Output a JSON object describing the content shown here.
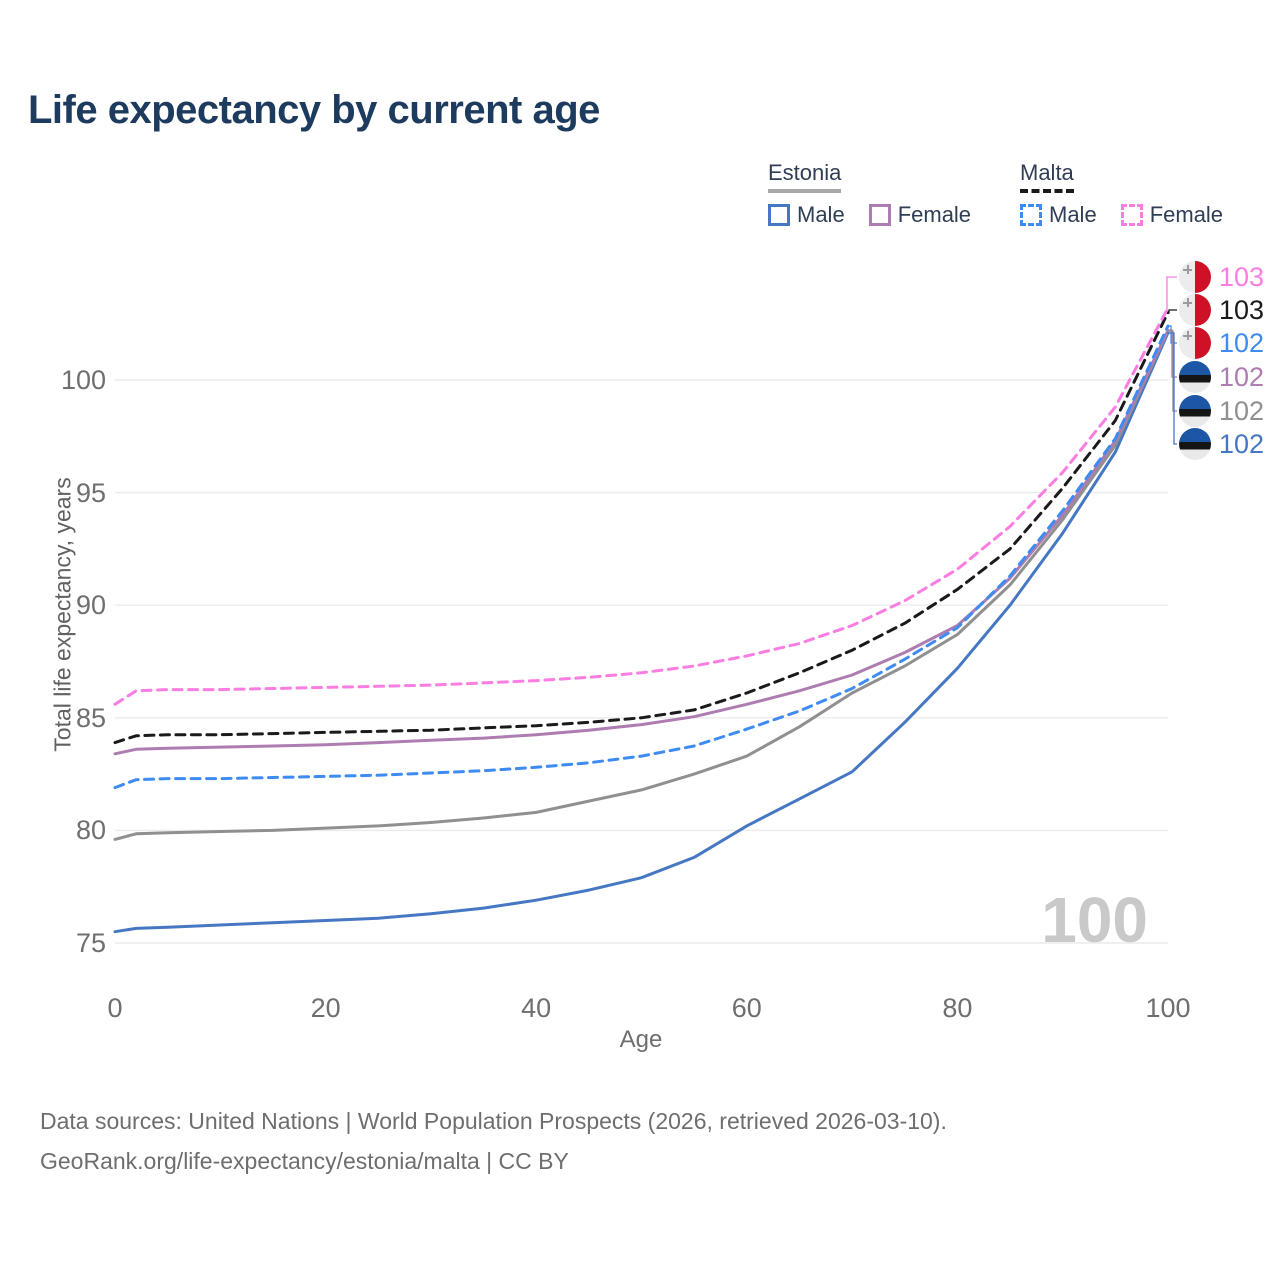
{
  "title": "Life expectancy by current age",
  "legend": {
    "groups": [
      {
        "id": "estonia",
        "label": "Estonia",
        "line_style": "solid",
        "underline_color": "#a8a8a8",
        "items": [
          {
            "label": "Male",
            "color": "#4577c3",
            "dashed": false
          },
          {
            "label": "Female",
            "color": "#ad7cb0",
            "dashed": false
          }
        ]
      },
      {
        "id": "malta",
        "label": "Malta",
        "line_style": "dashed",
        "underline_color": "#1a1a1a",
        "items": [
          {
            "label": "Male",
            "color": "#3e8bf2",
            "dashed": true
          },
          {
            "label": "Female",
            "color": "#fa7de2",
            "dashed": true
          }
        ]
      }
    ]
  },
  "chart_data": {
    "type": "line",
    "title": "Life expectancy by current age",
    "xlabel": "Age",
    "ylabel": "Total life expectancy, years",
    "xlim": [
      0,
      100
    ],
    "ylim": [
      73.5,
      104.5
    ],
    "x_ticks": [
      0,
      20,
      40,
      60,
      80,
      100
    ],
    "y_ticks": [
      75,
      80,
      85,
      90,
      95,
      100
    ],
    "grid": "horizontal-only",
    "legend_position": "top-right",
    "x": [
      0,
      2,
      5,
      10,
      15,
      20,
      25,
      30,
      35,
      40,
      45,
      50,
      55,
      60,
      65,
      70,
      75,
      80,
      85,
      90,
      95,
      100
    ],
    "series": [
      {
        "name": "Estonia Male",
        "country": "Estonia",
        "sex": "Male",
        "color": "#4577c3",
        "dash": "solid",
        "end_label": "102",
        "values": [
          75.5,
          75.65,
          75.7,
          75.8,
          75.9,
          76.0,
          76.1,
          76.3,
          76.55,
          76.9,
          77.35,
          77.9,
          78.8,
          80.2,
          81.4,
          82.6,
          84.8,
          87.2,
          90.0,
          93.2,
          96.8,
          102.1
        ]
      },
      {
        "name": "Estonia Both sexes",
        "country": "Estonia",
        "sex": "Both sexes",
        "color": "#909090",
        "dash": "solid",
        "end_label": "102",
        "values": [
          79.6,
          79.85,
          79.9,
          79.95,
          80.0,
          80.1,
          80.2,
          80.35,
          80.55,
          80.8,
          81.3,
          81.8,
          82.5,
          83.3,
          84.6,
          86.1,
          87.3,
          88.7,
          90.9,
          93.8,
          97.1,
          102.2
        ]
      },
      {
        "name": "Estonia Female",
        "country": "Estonia",
        "sex": "Female",
        "color": "#ad7cb0",
        "dash": "solid",
        "end_label": "102",
        "values": [
          83.4,
          83.6,
          83.65,
          83.7,
          83.75,
          83.8,
          83.9,
          84.0,
          84.1,
          84.25,
          84.45,
          84.7,
          85.05,
          85.6,
          86.2,
          86.9,
          87.9,
          89.1,
          91.2,
          94.0,
          97.3,
          102.2
        ]
      },
      {
        "name": "Malta Male",
        "country": "Malta",
        "sex": "Male",
        "color": "#3e8bf2",
        "dash": "dashed",
        "end_label": "102",
        "values": [
          81.9,
          82.25,
          82.3,
          82.3,
          82.35,
          82.4,
          82.45,
          82.55,
          82.65,
          82.8,
          83.0,
          83.3,
          83.75,
          84.5,
          85.3,
          86.3,
          87.6,
          89.0,
          91.3,
          94.2,
          97.4,
          102.4
        ]
      },
      {
        "name": "Malta Both sexes",
        "country": "Malta",
        "sex": "Both sexes",
        "color": "#1a1a1a",
        "dash": "dashed",
        "end_label": "103",
        "values": [
          83.9,
          84.2,
          84.25,
          84.25,
          84.3,
          84.35,
          84.4,
          84.45,
          84.55,
          84.65,
          84.8,
          85.0,
          85.35,
          86.1,
          87.0,
          88.0,
          89.2,
          90.7,
          92.5,
          95.2,
          98.2,
          103.0
        ]
      },
      {
        "name": "Malta Female",
        "country": "Malta",
        "sex": "Female",
        "color": "#fa7de2",
        "dash": "dashed",
        "end_label": "103",
        "values": [
          85.6,
          86.2,
          86.25,
          86.25,
          86.3,
          86.35,
          86.4,
          86.45,
          86.55,
          86.65,
          86.8,
          87.0,
          87.3,
          87.75,
          88.3,
          89.1,
          90.2,
          91.6,
          93.5,
          95.9,
          98.8,
          103.2
        ]
      }
    ]
  },
  "end_labels": [
    {
      "value": "103",
      "flag": "malta",
      "color": "#fa7de2"
    },
    {
      "value": "103",
      "flag": "malta",
      "color": "#1a1a1a"
    },
    {
      "value": "102",
      "flag": "malta",
      "color": "#3e8bf2"
    },
    {
      "value": "102",
      "flag": "estonia",
      "color": "#ad7cb0"
    },
    {
      "value": "102",
      "flag": "estonia",
      "color": "#909090"
    },
    {
      "value": "102",
      "flag": "estonia",
      "color": "#4577c3"
    }
  ],
  "watermark": "100",
  "footer": {
    "line1": "Data sources: United Nations | World Population Prospects (2026, retrieved 2026-03-10).",
    "line2": "GeoRank.org/life-expectancy/estonia/malta | CC BY"
  },
  "colors": {
    "title_text": "#1d3a5f",
    "axis_text": "#6f6f6f",
    "grid": "#ebebeb",
    "watermark": "#c9c9c9",
    "footer_text": "#6e6e6e",
    "malta_flag_red": "#ce1126",
    "estonia_flag_blue": "#1d56a5"
  }
}
